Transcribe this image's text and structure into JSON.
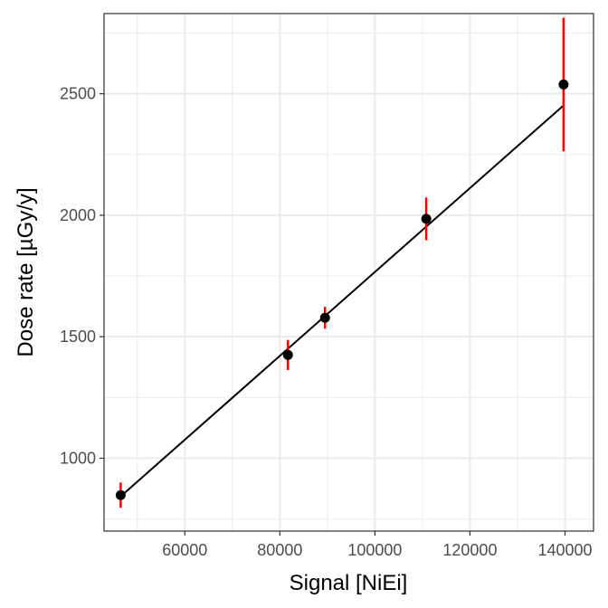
{
  "chart_data": {
    "type": "scatter",
    "xlabel": "Signal [NiEi]",
    "ylabel": "Dose rate [µGy/y]",
    "xlim": [
      43000,
      146000
    ],
    "ylim": [
      700,
      2830
    ],
    "x_ticks": [
      60000,
      80000,
      100000,
      120000,
      140000
    ],
    "x_tick_labels": [
      "60000",
      "80000",
      "100000",
      "120000",
      "140000"
    ],
    "y_ticks": [
      1000,
      1500,
      2000,
      2500
    ],
    "y_tick_labels": [
      "1000",
      "1500",
      "2000",
      "2500"
    ],
    "grid": true,
    "points": [
      {
        "x": 46500,
        "y": 848,
        "err": 52
      },
      {
        "x": 81700,
        "y": 1425,
        "err": 62
      },
      {
        "x": 89500,
        "y": 1578,
        "err": 45
      },
      {
        "x": 110800,
        "y": 1985,
        "err": 88
      },
      {
        "x": 139700,
        "y": 2538,
        "err": 275
      }
    ],
    "fit_line": {
      "x": [
        46500,
        139700
      ],
      "y": [
        843,
        2452
      ]
    },
    "colors": {
      "points": "#000000",
      "error_bars": "#ff0000",
      "fit_line": "#000000",
      "grid": "#ebebeb",
      "panel_border": "#333333"
    }
  }
}
